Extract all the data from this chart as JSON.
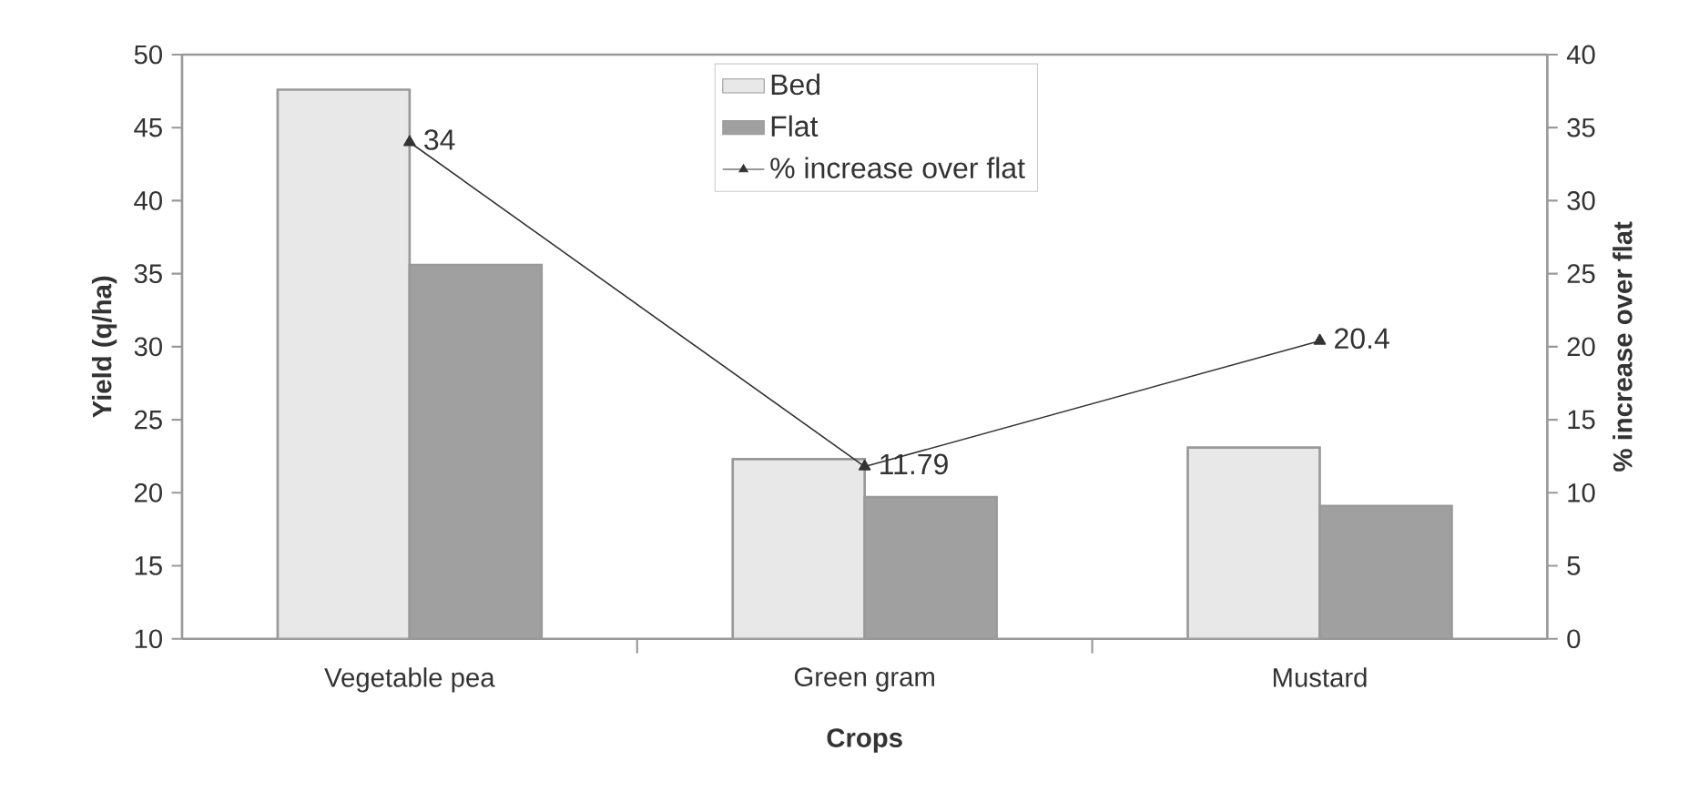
{
  "chart_data": {
    "type": "bar",
    "xlabel": "Crops",
    "ylabel": "Yield (q/ha)",
    "y2label": "% increase over flat",
    "categories": [
      "Vegetable pea",
      "Green gram",
      "Mustard"
    ],
    "series": [
      {
        "name": "Bed",
        "color": "#e8e8e8",
        "values": [
          47.6,
          22.3,
          23.1
        ]
      },
      {
        "name": "Flat",
        "color": "#a0a0a0",
        "values": [
          35.6,
          19.7,
          19.1
        ]
      },
      {
        "name": "% increase over flat",
        "type": "line",
        "axis": "y2",
        "color": "#333333",
        "marker": "triangle",
        "values": [
          34,
          11.79,
          20.4
        ],
        "value_labels": [
          "34",
          "11.79",
          "20.4"
        ]
      }
    ],
    "ylim": [
      10,
      50
    ],
    "yticks": [
      10,
      15,
      20,
      25,
      30,
      35,
      40,
      45,
      50
    ],
    "y2lim": [
      0,
      40
    ],
    "y2ticks": [
      0,
      5,
      10,
      15,
      20,
      25,
      30,
      35,
      40
    ],
    "legend": "top"
  }
}
